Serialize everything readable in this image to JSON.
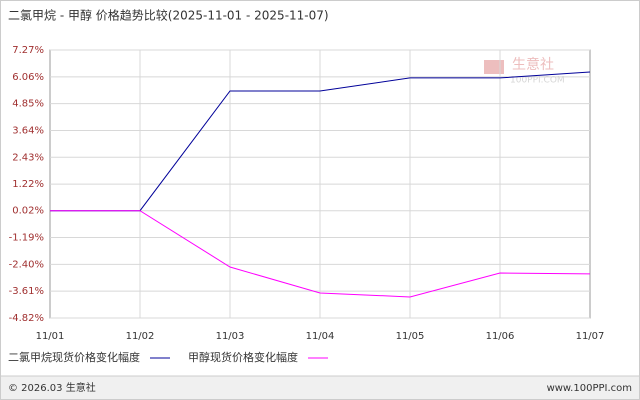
{
  "chart_data": {
    "type": "line",
    "title": "二氯甲烷 - 甲醇 价格趋势比较(2025-11-01 - 2025-11-07)",
    "categories": [
      "11/01",
      "11/02",
      "11/03",
      "11/04",
      "11/05",
      "11/06",
      "11/07"
    ],
    "series": [
      {
        "name": "二氯甲烷现货价格变化幅度",
        "color": "#000099",
        "values": [
          0.02,
          0.02,
          5.42,
          5.42,
          6.01,
          6.01,
          6.28
        ]
      },
      {
        "name": "甲醇现货价格变化幅度",
        "color": "#ff00ff",
        "values": [
          0.02,
          0.02,
          -2.52,
          -3.69,
          -3.87,
          -2.79,
          -2.83
        ]
      }
    ],
    "ylim": [
      -4.82,
      7.27
    ],
    "yticks": [
      {
        "value": 7.27,
        "label": "7.27%"
      },
      {
        "value": 6.06,
        "label": "6.06%"
      },
      {
        "value": 4.85,
        "label": "4.85%"
      },
      {
        "value": 3.64,
        "label": "3.64%"
      },
      {
        "value": 2.43,
        "label": "2.43%"
      },
      {
        "value": 1.22,
        "label": "1.22%"
      },
      {
        "value": 0.02,
        "label": "0.02%"
      },
      {
        "value": -1.19,
        "label": "-1.19%"
      },
      {
        "value": -2.4,
        "label": "-2.40%"
      },
      {
        "value": -3.61,
        "label": "-3.61%"
      },
      {
        "value": -4.82,
        "label": "-4.82%"
      }
    ],
    "grid": true
  },
  "watermark": {
    "name": "生意社",
    "site": "100PPI.COM"
  },
  "footer": {
    "copyright": "© 2026.03 生意社",
    "site": "www.100PPI.com"
  }
}
